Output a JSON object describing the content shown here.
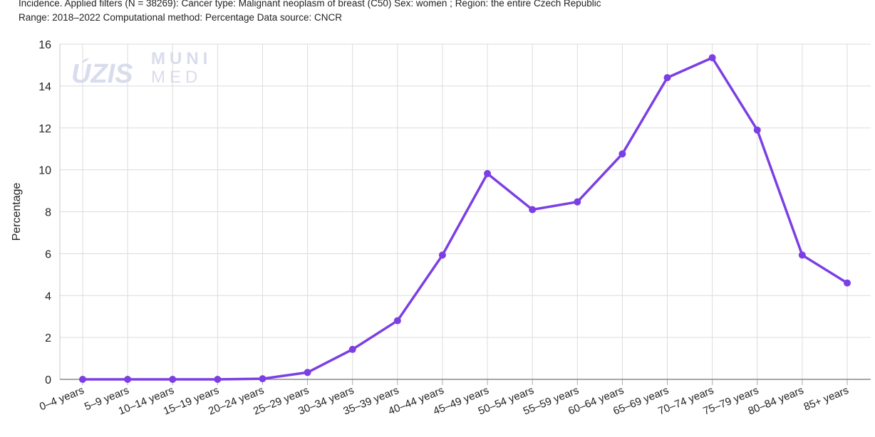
{
  "header": {
    "line1": "Incidence. Applied filters (N = 38269): Cancer type: Malignant neoplasm of breast (C50) Sex: women ; Region: the entire Czech Republic",
    "line2": "Range: 2018–2022 Computational method: Percentage Data source: CNCR"
  },
  "watermark": {
    "logo1": "ÚZIS",
    "logo2_top": "MUNI",
    "logo2_bottom": "MED"
  },
  "colors": {
    "series": "#7b3fe4",
    "grid": "#dcdcdc",
    "axis": "#888888"
  },
  "chart_data": {
    "type": "line",
    "ylabel": "Percentage",
    "xlabel": "",
    "ylim": [
      0,
      16
    ],
    "yticks": [
      0,
      2,
      4,
      6,
      8,
      10,
      12,
      14,
      16
    ],
    "grid": true,
    "categories": [
      "0–4 years",
      "5–9 years",
      "10–14 years",
      "15–19 years",
      "20–24 years",
      "25–29 years",
      "30–34 years",
      "35–39 years",
      "40–44 years",
      "45–49 years",
      "50–54 years",
      "55–59 years",
      "60–64 years",
      "65–69 years",
      "70–74 years",
      "75–79 years",
      "80–84 years",
      "85+ years"
    ],
    "series": [
      {
        "values": [
          0.0,
          0.0,
          0.0,
          0.0,
          0.03,
          0.33,
          1.43,
          2.8,
          5.93,
          9.82,
          8.1,
          8.47,
          10.76,
          14.4,
          15.35,
          11.9,
          5.93,
          4.6
        ]
      }
    ]
  }
}
